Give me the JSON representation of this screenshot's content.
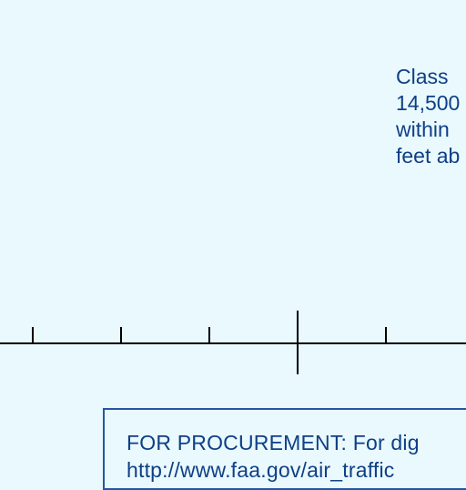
{
  "airspace_note": {
    "lines": [
      "Class",
      "14,500",
      "within",
      "feet ab"
    ]
  },
  "procurement_box": {
    "title": "FOR PROCUREMENT:  For dig",
    "url_fragment": "http://www.faa.gov/air_traffic"
  },
  "colors": {
    "background": "#e9f9fd",
    "text": "#0f3f86",
    "box_border": "#2556a2",
    "scale_line": "#000000"
  }
}
